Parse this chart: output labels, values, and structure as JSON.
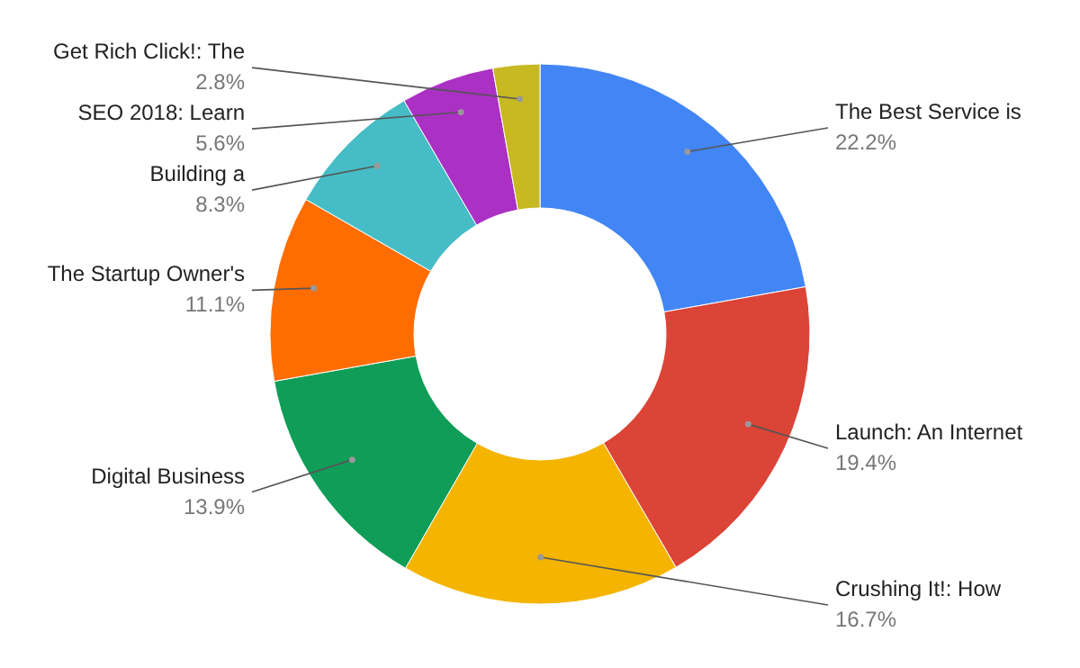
{
  "chart_data": {
    "type": "donut",
    "categories": [
      "The Best Service is",
      "Launch: An Internet",
      "Crushing It!: How",
      "Digital Business",
      "The Startup Owner's",
      "Building a",
      "SEO 2018: Learn",
      "Get Rich Click!: The"
    ],
    "values": [
      22.2,
      19.4,
      16.7,
      13.9,
      11.1,
      8.3,
      5.6,
      2.8
    ],
    "value_labels": [
      "22.2%",
      "19.4%",
      "16.7%",
      "13.9%",
      "11.1%",
      "8.3%",
      "5.6%",
      "2.8%"
    ],
    "colors": [
      "#4285f4",
      "#db4437",
      "#f4b400",
      "#0f9d58",
      "#ff6d01",
      "#46bdc6",
      "#ab30c4",
      "#c6b921"
    ]
  }
}
